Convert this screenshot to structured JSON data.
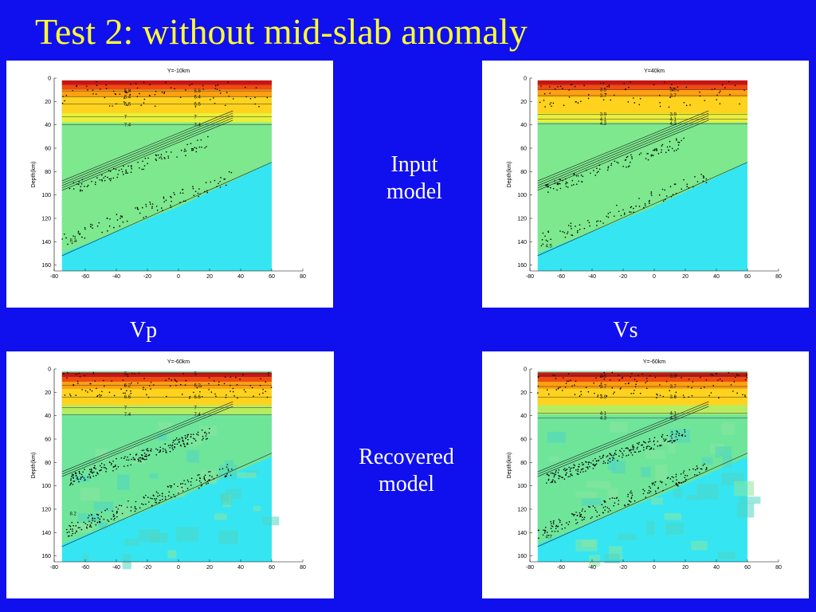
{
  "slide": {
    "title": "Test 2: without mid-slab anomaly",
    "background_color": "#1010ee",
    "title_color": "#ffff33"
  },
  "labels": {
    "input": [
      "Input",
      "model"
    ],
    "recovered": [
      "Recovered",
      "model"
    ],
    "vp": "Vp",
    "vs": "Vs"
  },
  "axes": {
    "ylabel": "Depth(km)",
    "xticks": [
      "-80",
      "-60",
      "-40",
      "-20",
      "0",
      "20",
      "40",
      "60",
      "80"
    ],
    "yticks": [
      "0",
      "20",
      "40",
      "60",
      "80",
      "100",
      "120",
      "140",
      "160"
    ]
  },
  "panels": [
    {
      "id": "vp-input",
      "subtitle": "Y=-10km",
      "contours": [
        {
          "label": "5.8",
          "depth": 11
        },
        {
          "label": "6.4",
          "depth": 16
        },
        {
          "label": "6.6",
          "depth": 22
        },
        {
          "label": "7",
          "depth": 33
        },
        {
          "label": "7.4",
          "depth": 40
        },
        {
          "label": "8.2",
          "depth": 140
        }
      ]
    },
    {
      "id": "vs-input",
      "subtitle": "Y=40km",
      "contours": [
        {
          "label": "3.5",
          "depth": 10
        },
        {
          "label": "3.7",
          "depth": 15
        },
        {
          "label": "3.9",
          "depth": 31
        },
        {
          "label": "4.1",
          "depth": 35
        },
        {
          "label": "4.3",
          "depth": 39
        },
        {
          "label": "4.5",
          "depth": 145
        }
      ]
    },
    {
      "id": "vp-recovered",
      "subtitle": "Y=-60km",
      "contours": [
        {
          "label": "5",
          "depth": 4
        },
        {
          "label": "6.2",
          "depth": 14
        },
        {
          "label": "6.6",
          "depth": 24
        },
        {
          "label": "7",
          "depth": 33
        },
        {
          "label": "7.4",
          "depth": 39
        },
        {
          "label": "8.2",
          "depth": 125
        }
      ]
    },
    {
      "id": "vs-recovered",
      "subtitle": "Y=-60km",
      "contours": [
        {
          "label": "3.5",
          "depth": 6
        },
        {
          "label": "3.7",
          "depth": 15
        },
        {
          "label": "3.9",
          "depth": 24
        },
        {
          "label": "4.1",
          "depth": 38
        },
        {
          "label": "4.3",
          "depth": 42
        },
        {
          "label": "4.7",
          "depth": 145
        }
      ]
    }
  ]
}
